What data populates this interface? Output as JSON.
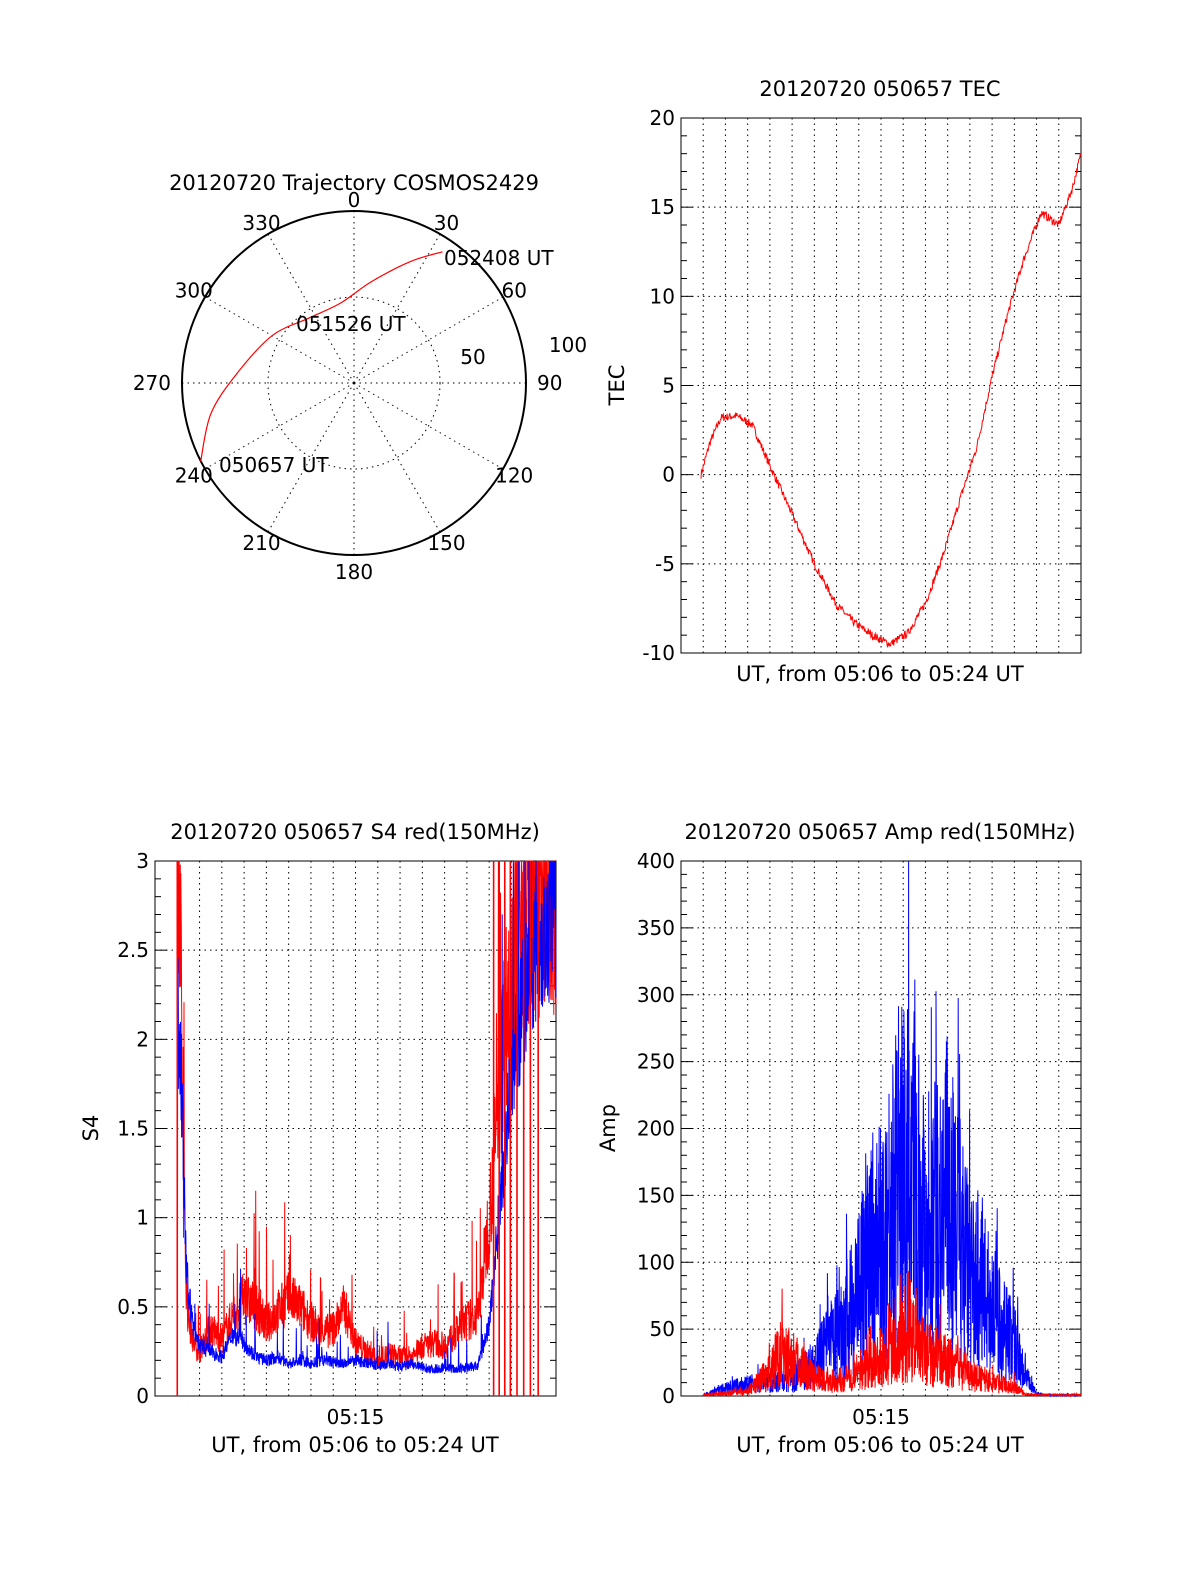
{
  "chart_data": [
    {
      "type": "polar",
      "title": "20120720 Trajectory COSMOS2429",
      "angle_labels": [
        "0",
        "30",
        "60",
        "90",
        "120",
        "150",
        "180",
        "210",
        "240",
        "270",
        "300",
        "330"
      ],
      "radial_labels": [
        "50",
        "100"
      ],
      "rlim": [
        0,
        100
      ],
      "grid": true,
      "series": [
        {
          "color": "#ff0000",
          "points": [
            {
              "az": 243,
              "r": 100
            },
            {
              "az": 258,
              "r": 85
            },
            {
              "az": 275,
              "r": 68
            },
            {
              "az": 300,
              "r": 55
            },
            {
              "az": 325,
              "r": 46
            },
            {
              "az": 350,
              "r": 47
            },
            {
              "az": 10,
              "r": 60
            },
            {
              "az": 25,
              "r": 78
            },
            {
              "az": 34,
              "r": 92
            }
          ]
        }
      ],
      "annotations": [
        "052408 UT",
        "051526 UT",
        "050657 UT"
      ]
    },
    {
      "type": "line",
      "title": "20120720 050657 TEC",
      "xlabel": "UT, from 05:06 to 05:24 UT",
      "ylabel": "TEC",
      "xlim": [
        0,
        18
      ],
      "ylim": [
        -10,
        20
      ],
      "yticks": [
        "-10",
        "-5",
        "0",
        "5",
        "10",
        "15",
        "20"
      ],
      "grid": true,
      "series": [
        {
          "color": "#ff0000",
          "x": [
            0.9,
            1.3,
            1.8,
            2.5,
            3.2,
            4.0,
            5.0,
            6.0,
            7.0,
            7.8,
            8.6,
            9.4,
            10.2,
            11.0,
            11.8,
            12.6,
            13.3,
            14.0,
            14.7,
            15.4,
            16.2,
            17.0,
            17.6,
            18.0
          ],
          "y": [
            0,
            1.8,
            3.2,
            3.3,
            2.8,
            0.5,
            -2.2,
            -5.0,
            -7.3,
            -8.3,
            -9.0,
            -9.5,
            -8.9,
            -7.2,
            -4.5,
            -1.2,
            1.5,
            5.5,
            9.0,
            12.0,
            14.7,
            14.0,
            16.0,
            18.0
          ]
        }
      ]
    },
    {
      "type": "line",
      "title": "20120720 050657 S4 red(150MHz)",
      "xlabel": "UT, from 05:06 to 05:24 UT",
      "ylabel": "S4",
      "xtick_labels": [
        "05:15"
      ],
      "xlim": [
        0,
        18
      ],
      "ylim": [
        0,
        3
      ],
      "yticks": [
        "0",
        "0.5",
        "1",
        "1.5",
        "2",
        "2.5",
        "3"
      ],
      "grid": true,
      "series": [
        {
          "color": "#ff0000",
          "x": [
            1.0,
            1.15,
            1.3,
            1.45,
            1.7,
            2.0,
            2.5,
            3.0,
            3.5,
            4.0,
            4.5,
            5.0,
            5.5,
            6.0,
            6.5,
            7.0,
            7.5,
            8.0,
            8.5,
            9.0,
            9.5,
            10.0,
            10.5,
            11.0,
            11.5,
            12.0,
            12.5,
            13.0,
            13.5,
            14.0,
            14.5,
            15.0,
            15.5,
            16.0,
            16.5,
            17.0,
            17.5,
            18.0
          ],
          "y": [
            3.0,
            2.4,
            1.0,
            0.5,
            0.3,
            0.25,
            0.38,
            0.32,
            0.45,
            0.55,
            0.5,
            0.4,
            0.47,
            0.55,
            0.5,
            0.42,
            0.35,
            0.38,
            0.5,
            0.3,
            0.25,
            0.2,
            0.24,
            0.22,
            0.22,
            0.28,
            0.3,
            0.28,
            0.35,
            0.42,
            0.45,
            1.0,
            1.8,
            2.4,
            2.8,
            2.9,
            2.9,
            2.9
          ]
        },
        {
          "color": "#0000ff",
          "x": [
            1.0,
            1.2,
            1.4,
            1.7,
            2.0,
            2.5,
            3.0,
            3.5,
            4.0,
            4.5,
            5.0,
            5.5,
            6.0,
            6.5,
            7.0,
            7.5,
            8.0,
            8.5,
            9.0,
            9.5,
            10.0,
            10.5,
            11.0,
            11.5,
            12.0,
            12.5,
            13.0,
            13.5,
            14.0,
            14.5,
            15.0,
            15.5,
            16.0,
            16.5,
            17.0,
            17.5,
            18.0
          ],
          "y": [
            2.2,
            1.7,
            0.7,
            0.4,
            0.28,
            0.25,
            0.22,
            0.35,
            0.3,
            0.22,
            0.2,
            0.22,
            0.18,
            0.2,
            0.18,
            0.2,
            0.19,
            0.18,
            0.2,
            0.19,
            0.17,
            0.18,
            0.16,
            0.18,
            0.16,
            0.15,
            0.16,
            0.15,
            0.16,
            0.17,
            0.4,
            1.1,
            1.8,
            2.2,
            2.5,
            2.6,
            2.7
          ]
        }
      ]
    },
    {
      "type": "line",
      "title": "20120720 050657 Amp red(150MHz)",
      "xlabel": "UT, from 05:06 to 05:24 UT",
      "ylabel": "Amp",
      "xtick_labels": [
        "05:15"
      ],
      "xlim": [
        0,
        18
      ],
      "ylim": [
        0,
        400
      ],
      "yticks": [
        "0",
        "50",
        "100",
        "150",
        "200",
        "250",
        "300",
        "350",
        "400"
      ],
      "grid": true,
      "series": [
        {
          "color": "#0000ff",
          "x": [
            1.0,
            2.0,
            3.0,
            4.0,
            5.0,
            6.0,
            6.5,
            7.0,
            7.5,
            8.0,
            8.5,
            9.0,
            9.5,
            10.0,
            10.5,
            11.0,
            11.5,
            12.0,
            12.5,
            13.0,
            13.5,
            14.0,
            14.5,
            15.0,
            15.5,
            16.0,
            16.5,
            17.0,
            18.0
          ],
          "y": [
            1,
            8,
            12,
            15,
            18,
            30,
            50,
            60,
            80,
            110,
            140,
            160,
            200,
            230,
            220,
            180,
            190,
            210,
            170,
            120,
            110,
            90,
            70,
            55,
            20,
            2,
            1,
            1,
            1
          ]
        },
        {
          "color": "#ff0000",
          "x": [
            1.0,
            2.0,
            3.0,
            4.0,
            4.5,
            5.0,
            5.5,
            6.0,
            6.5,
            7.0,
            7.5,
            8.0,
            8.5,
            9.0,
            9.5,
            10.0,
            10.5,
            11.0,
            11.5,
            12.0,
            12.5,
            13.0,
            13.5,
            14.0,
            14.5,
            15.0,
            15.5,
            16.0,
            18.0
          ],
          "y": [
            1,
            3,
            5,
            25,
            50,
            40,
            30,
            20,
            15,
            15,
            20,
            25,
            30,
            40,
            55,
            60,
            55,
            45,
            40,
            35,
            30,
            20,
            18,
            15,
            12,
            10,
            2,
            1,
            1
          ]
        }
      ]
    }
  ]
}
